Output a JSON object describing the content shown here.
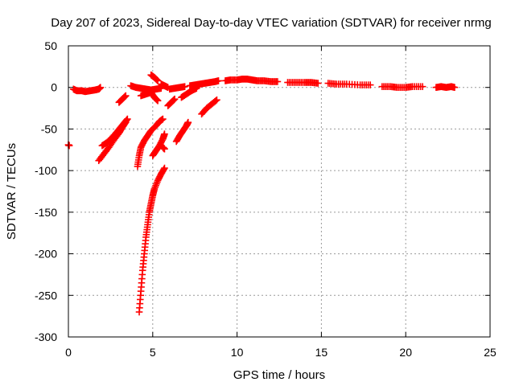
{
  "chart_data": {
    "type": "scatter",
    "title": "Day 207 of 2023, Sidereal Day-to-day VTEC variation (SDTVAR) for receiver nrmg",
    "xlabel": "GPS time / hours",
    "ylabel": "SDTVAR / TECUs",
    "xlim": [
      0,
      25
    ],
    "ylim": [
      -300,
      50
    ],
    "xticks": [
      0,
      5,
      10,
      15,
      20,
      25
    ],
    "yticks": [
      50,
      0,
      -50,
      -100,
      -150,
      -200,
      -250,
      -300
    ],
    "grid": true,
    "marker": "+",
    "color": "#ff0000",
    "segments": [
      {
        "x": [
          0.0,
          0.05
        ],
        "y": [
          -69,
          -70
        ]
      },
      {
        "x": [
          0.3,
          0.5,
          0.8,
          1.0,
          1.3,
          1.6,
          1.8,
          1.9
        ],
        "y": [
          -2,
          -4,
          -4,
          -5,
          -4,
          -3,
          -2,
          0
        ]
      },
      {
        "x": [
          1.8,
          2.1,
          2.4,
          2.7,
          3.0,
          3.2,
          3.4
        ],
        "y": [
          -88,
          -80,
          -72,
          -63,
          -55,
          -48,
          -42
        ]
      },
      {
        "x": [
          2.0,
          2.3,
          2.6,
          2.9,
          3.1,
          3.3,
          3.5
        ],
        "y": [
          -70,
          -66,
          -60,
          -53,
          -48,
          -43,
          -38
        ]
      },
      {
        "x": [
          3.0,
          3.2,
          3.4
        ],
        "y": [
          -18,
          -14,
          -10
        ]
      },
      {
        "x": [
          3.7,
          4.0,
          4.3,
          4.6,
          4.9,
          5.2,
          5.5
        ],
        "y": [
          2,
          0,
          -1,
          -2,
          -3,
          -2,
          -1
        ]
      },
      {
        "x": [
          4.1,
          4.2,
          4.3,
          4.5,
          4.7,
          4.9,
          5.2,
          5.4,
          5.6
        ],
        "y": [
          -95,
          -82,
          -72,
          -64,
          -58,
          -52,
          -46,
          -41,
          -38
        ]
      },
      {
        "x": [
          4.3,
          4.6,
          4.9,
          5.1,
          5.3
        ],
        "y": [
          -10,
          -8,
          -6,
          -12,
          -16
        ]
      },
      {
        "x": [
          4.2,
          4.3,
          4.4,
          4.5,
          4.6,
          4.7,
          4.8,
          4.9,
          5.0,
          5.1,
          5.3,
          5.5,
          5.7
        ],
        "y": [
          -270,
          -245,
          -220,
          -200,
          -180,
          -165,
          -150,
          -140,
          -130,
          -122,
          -112,
          -104,
          -97
        ]
      },
      {
        "x": [
          4.9,
          5.1,
          5.3
        ],
        "y": [
          15,
          12,
          8
        ]
      },
      {
        "x": [
          5.0,
          5.2,
          5.4,
          5.6,
          5.7
        ],
        "y": [
          -82,
          -76,
          -70,
          -62,
          -56
        ]
      },
      {
        "x": [
          5.6,
          5.7
        ],
        "y": [
          -72,
          -74
        ]
      },
      {
        "x": [
          5.5,
          5.7,
          5.9
        ],
        "y": [
          4,
          2,
          0
        ]
      },
      {
        "x": [
          5.9,
          6.1,
          6.3
        ],
        "y": [
          -22,
          -18,
          -14
        ]
      },
      {
        "x": [
          6.0,
          6.3,
          6.6,
          6.9
        ],
        "y": [
          -2,
          -1,
          0,
          1
        ]
      },
      {
        "x": [
          6.4,
          6.6,
          6.8,
          7.0,
          7.1
        ],
        "y": [
          -65,
          -58,
          -52,
          -46,
          -42
        ]
      },
      {
        "x": [
          6.7,
          7.0,
          7.3,
          7.6
        ],
        "y": [
          -12,
          -8,
          -4,
          -1
        ]
      },
      {
        "x": [
          7.2,
          7.5,
          7.8,
          8.1,
          8.4,
          8.7,
          8.9
        ],
        "y": [
          2,
          3,
          4,
          5,
          6,
          7,
          8
        ]
      },
      {
        "x": [
          7.9,
          8.2,
          8.5,
          8.8
        ],
        "y": [
          -32,
          -25,
          -20,
          -15
        ]
      },
      {
        "x": [
          9.3,
          9.6,
          10.0,
          10.3,
          10.6,
          10.9,
          11.2,
          11.6,
          12.0,
          12.4
        ],
        "y": [
          8,
          9,
          9,
          10,
          10,
          9,
          8,
          8,
          7,
          7
        ]
      },
      {
        "x": [
          13.0,
          13.5,
          14.0,
          14.4,
          14.8
        ],
        "y": [
          6,
          6,
          6,
          6,
          5
        ]
      },
      {
        "x": [
          15.4,
          15.9,
          16.5,
          17.3,
          17.9
        ],
        "y": [
          5,
          4,
          4,
          3,
          3
        ]
      },
      {
        "x": [
          18.6,
          19.1,
          19.5,
          20.0,
          20.4,
          21.0
        ],
        "y": [
          1,
          1,
          0,
          0,
          1,
          1
        ]
      },
      {
        "x": [
          21.8,
          22.1,
          22.4,
          22.7,
          22.9
        ],
        "y": [
          0,
          1,
          0,
          1,
          0
        ]
      }
    ]
  }
}
